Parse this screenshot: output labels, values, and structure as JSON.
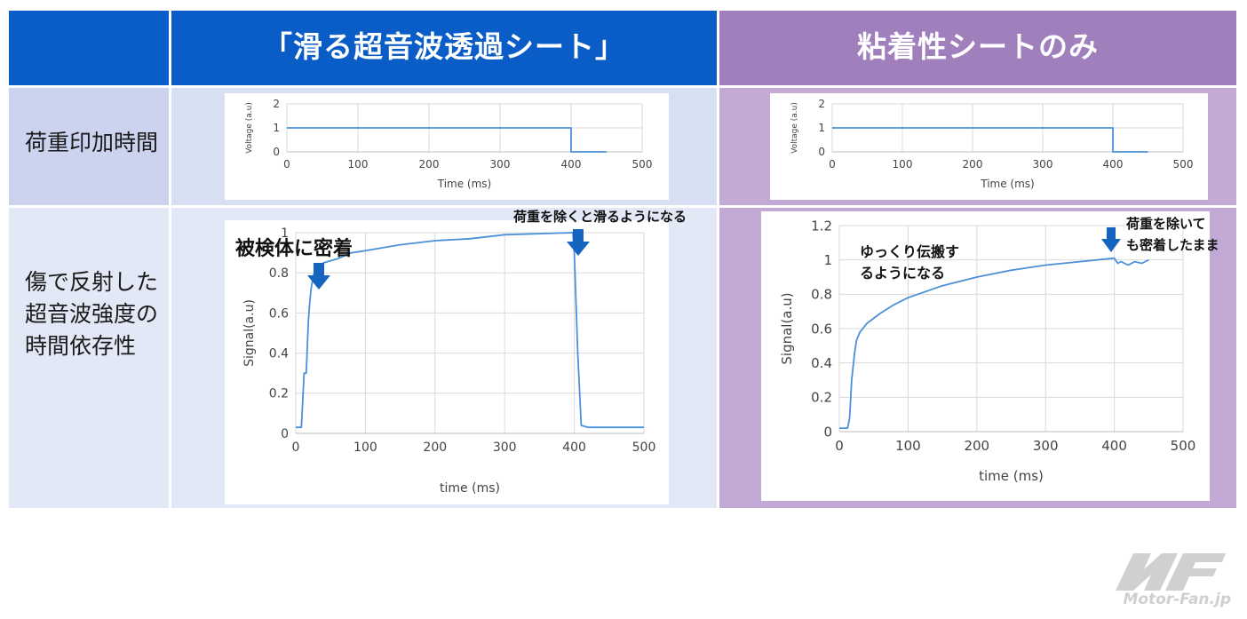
{
  "header": {
    "col1_title": "「滑る超音波透過シート」",
    "col2_title": "粘着性シートのみ"
  },
  "rows": {
    "row1_label": "荷重印加時間",
    "row2_label": "傷で反射した\n超音波強度の\n時間依存性"
  },
  "annotations": {
    "adhesion": "被検体に密着",
    "slip": "荷重を除くと滑るようになる",
    "slow": "ゆっくり伝搬す\nるようになる",
    "stays": "荷重を除いて\nも密着したまま"
  },
  "logo": {
    "text": "Motor-Fan.jp"
  },
  "colors": {
    "header_blue": "#0a5cc6",
    "header_purple": "#a07fbd",
    "line": "#4a90d9",
    "arrow": "#1565c0"
  },
  "chart_data": [
    {
      "type": "line",
      "xlabel": "Time (ms)",
      "ylabel": "Voltage (a.u)",
      "xlim": [
        0,
        500
      ],
      "ylim": [
        0,
        2
      ],
      "xticks": [
        "0",
        "100",
        "200",
        "300",
        "400",
        "500"
      ],
      "yticks": [
        "0",
        "1",
        "2"
      ],
      "series": [
        {
          "x": [
            0,
            400,
            400,
            450
          ],
          "y": [
            1,
            1,
            0,
            0
          ]
        }
      ]
    },
    {
      "type": "line",
      "xlabel": "Time (ms)",
      "ylabel": "Voltage (a.u)",
      "xlim": [
        0,
        500
      ],
      "ylim": [
        0,
        2
      ],
      "xticks": [
        "0",
        "100",
        "200",
        "300",
        "400",
        "500"
      ],
      "yticks": [
        "0",
        "1",
        "2"
      ],
      "series": [
        {
          "x": [
            0,
            400,
            400,
            450
          ],
          "y": [
            1,
            1,
            0,
            0
          ]
        }
      ]
    },
    {
      "type": "line",
      "xlabel": "time (ms)",
      "ylabel": "Signal(a.u)",
      "xlim": [
        0,
        500
      ],
      "ylim": [
        0,
        1
      ],
      "xticks": [
        "0",
        "100",
        "200",
        "300",
        "400",
        "500"
      ],
      "yticks": [
        "0",
        "0.2",
        "0.4",
        "0.6",
        "0.8",
        "1"
      ],
      "series": [
        {
          "x": [
            0,
            8,
            12,
            15,
            18,
            20,
            22,
            25,
            28,
            32,
            40,
            60,
            80,
            100,
            150,
            200,
            250,
            300,
            350,
            398,
            400,
            405,
            410,
            420,
            450,
            500
          ],
          "y": [
            0.03,
            0.03,
            0.3,
            0.3,
            0.55,
            0.65,
            0.72,
            0.78,
            0.82,
            0.83,
            0.85,
            0.87,
            0.9,
            0.91,
            0.94,
            0.96,
            0.97,
            0.99,
            0.995,
            1.0,
            0.9,
            0.4,
            0.04,
            0.03,
            0.03,
            0.03
          ]
        }
      ]
    },
    {
      "type": "line",
      "xlabel": "time (ms)",
      "ylabel": "Signal(a.u)",
      "xlim": [
        0,
        500
      ],
      "ylim": [
        0,
        1.2
      ],
      "xticks": [
        "0",
        "100",
        "200",
        "300",
        "400",
        "500"
      ],
      "yticks": [
        "0",
        "0.2",
        "0.4",
        "0.6",
        "0.8",
        "1",
        "1.2"
      ],
      "series": [
        {
          "x": [
            0,
            12,
            15,
            18,
            22,
            25,
            30,
            40,
            60,
            80,
            100,
            150,
            200,
            250,
            300,
            350,
            400,
            405,
            410,
            420,
            430,
            440,
            450
          ],
          "y": [
            0.02,
            0.02,
            0.08,
            0.3,
            0.45,
            0.53,
            0.58,
            0.63,
            0.69,
            0.74,
            0.78,
            0.85,
            0.9,
            0.94,
            0.97,
            0.99,
            1.01,
            0.98,
            0.99,
            0.97,
            0.99,
            0.98,
            1.0
          ]
        }
      ]
    }
  ]
}
